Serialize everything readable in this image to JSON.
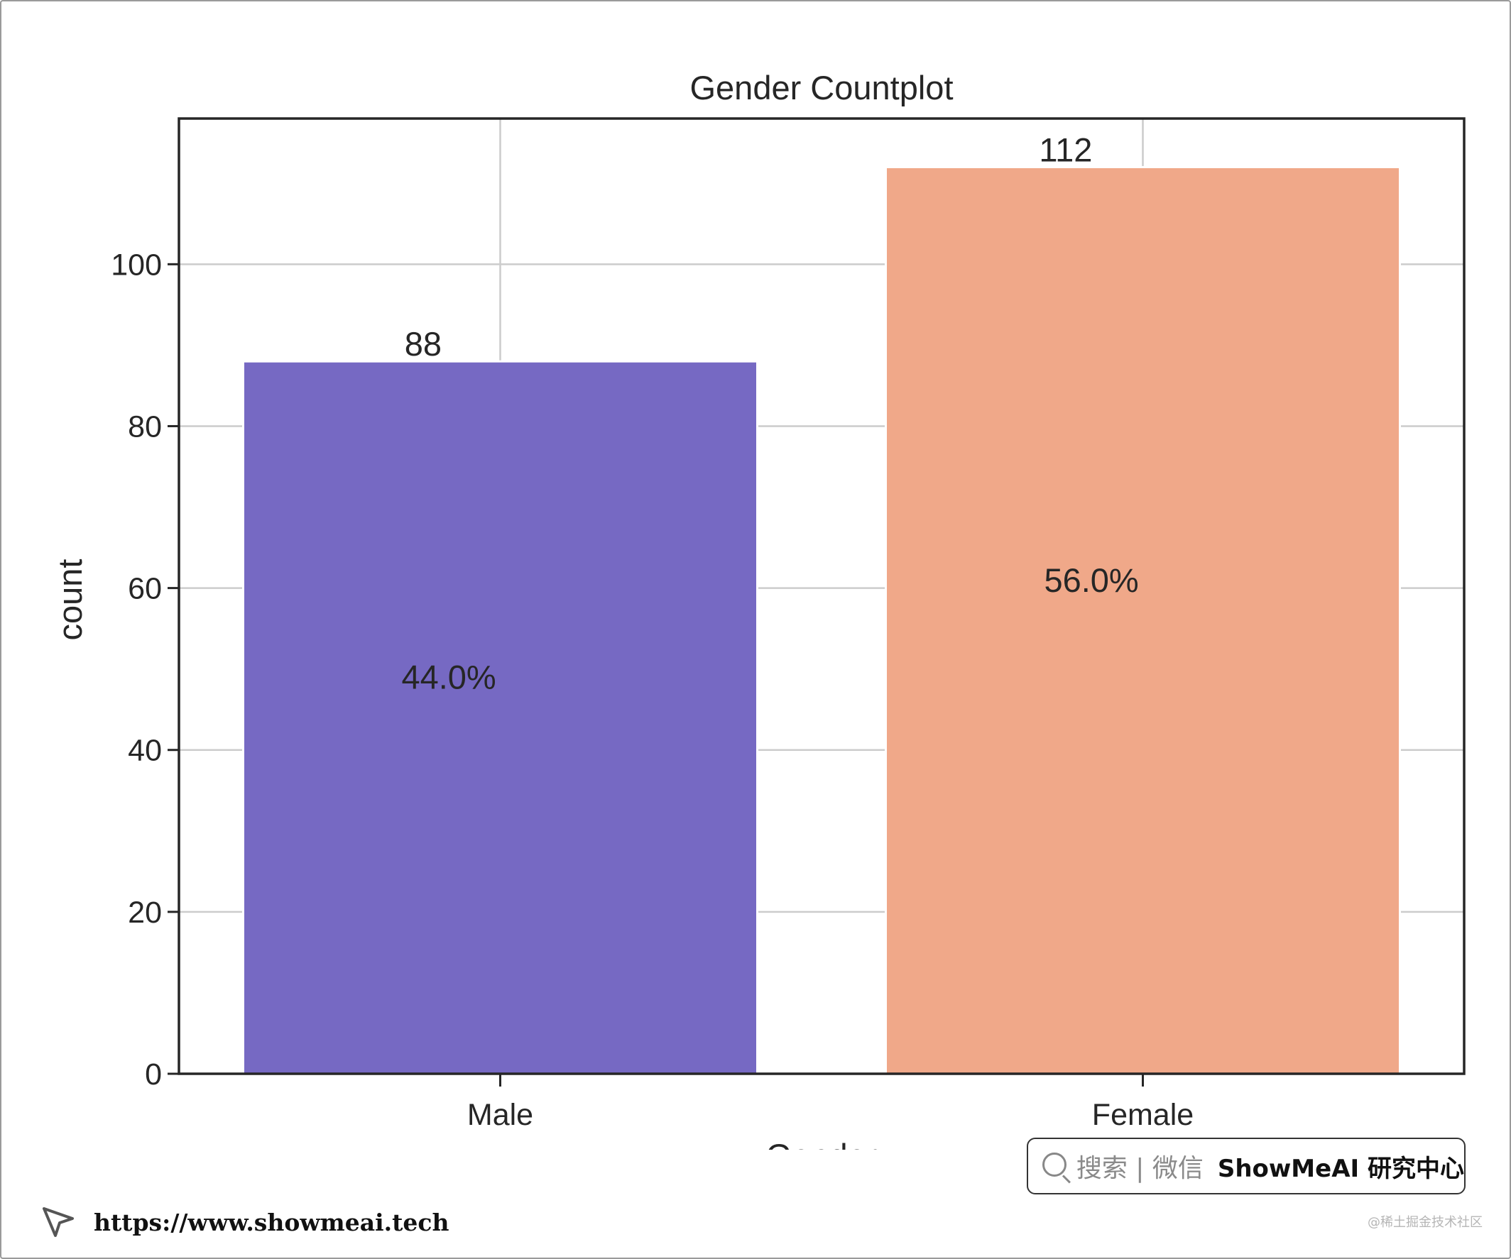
{
  "chart_data": {
    "type": "bar",
    "title": "Gender Countplot",
    "xlabel": "Gender",
    "ylabel": "count",
    "categories": [
      "Male",
      "Female"
    ],
    "values": [
      88,
      112
    ],
    "value_labels": [
      "88",
      "112"
    ],
    "percent_labels": [
      "44.0%",
      "56.0%"
    ],
    "colors": [
      "#7669c3",
      "#f0a889"
    ],
    "ylim": [
      0,
      118
    ],
    "yticks": [
      0,
      20,
      40,
      60,
      80,
      100
    ],
    "grid": true
  },
  "badge": {
    "search_text": "搜索 | 微信",
    "brand_text": "ShowMeAI 研究中心"
  },
  "footer": {
    "url": "https://www.showmeai.tech"
  },
  "watermark": "@稀土掘金技术社区"
}
